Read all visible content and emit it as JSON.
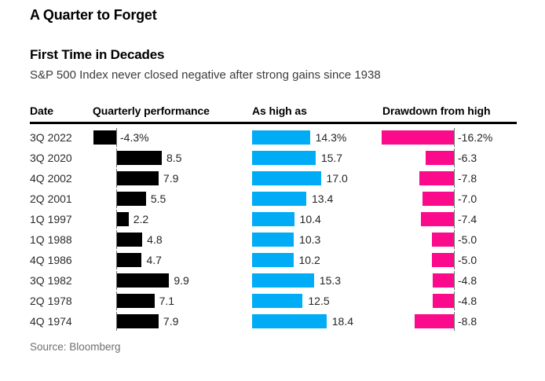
{
  "page": {
    "title": "A Quarter to Forget"
  },
  "chart": {
    "title": "First Time in Decades",
    "subtitle": "S&P 500 Index never closed negative after strong gains since 1938",
    "source": "Source: Bloomberg"
  },
  "colors": {
    "performance_bar": "#000000",
    "high_bar": "#00acf5",
    "drawdown_bar": "#fb0a8c",
    "baseline_tick": "#6e6e6e"
  },
  "chart_data": {
    "type": "bar",
    "orientation": "horizontal",
    "unit": "%",
    "title": "First Time in Decades",
    "subtitle": "S&P 500 Index never closed negative after strong gains since 1938",
    "columns": [
      "Date",
      "Quarterly performance",
      "As high as",
      "Drawdown from high"
    ],
    "rows": [
      {
        "date": "3Q 2022",
        "quarterly_performance": -4.3,
        "as_high_as": 14.3,
        "drawdown_from_high": -16.2,
        "labels": {
          "quarterly_performance": "-4.3%",
          "as_high_as": "14.3%",
          "drawdown_from_high": "-16.2%"
        }
      },
      {
        "date": "3Q 2020",
        "quarterly_performance": 8.5,
        "as_high_as": 15.7,
        "drawdown_from_high": -6.3,
        "labels": {
          "quarterly_performance": "8.5",
          "as_high_as": "15.7",
          "drawdown_from_high": "-6.3"
        }
      },
      {
        "date": "4Q 2002",
        "quarterly_performance": 7.9,
        "as_high_as": 17.0,
        "drawdown_from_high": -7.8,
        "labels": {
          "quarterly_performance": "7.9",
          "as_high_as": "17.0",
          "drawdown_from_high": "-7.8"
        }
      },
      {
        "date": "2Q 2001",
        "quarterly_performance": 5.5,
        "as_high_as": 13.4,
        "drawdown_from_high": -7.0,
        "labels": {
          "quarterly_performance": "5.5",
          "as_high_as": "13.4",
          "drawdown_from_high": "-7.0"
        }
      },
      {
        "date": "1Q 1997",
        "quarterly_performance": 2.2,
        "as_high_as": 10.4,
        "drawdown_from_high": -7.4,
        "labels": {
          "quarterly_performance": "2.2",
          "as_high_as": "10.4",
          "drawdown_from_high": "-7.4"
        }
      },
      {
        "date": "1Q 1988",
        "quarterly_performance": 4.8,
        "as_high_as": 10.3,
        "drawdown_from_high": -5.0,
        "labels": {
          "quarterly_performance": "4.8",
          "as_high_as": "10.3",
          "drawdown_from_high": "-5.0"
        }
      },
      {
        "date": "4Q 1986",
        "quarterly_performance": 4.7,
        "as_high_as": 10.2,
        "drawdown_from_high": -5.0,
        "labels": {
          "quarterly_performance": "4.7",
          "as_high_as": "10.2",
          "drawdown_from_high": "-5.0"
        }
      },
      {
        "date": "3Q 1982",
        "quarterly_performance": 9.9,
        "as_high_as": 15.3,
        "drawdown_from_high": -4.8,
        "labels": {
          "quarterly_performance": "9.9",
          "as_high_as": "15.3",
          "drawdown_from_high": "-4.8"
        }
      },
      {
        "date": "2Q 1978",
        "quarterly_performance": 7.1,
        "as_high_as": 12.5,
        "drawdown_from_high": -4.8,
        "labels": {
          "quarterly_performance": "7.1",
          "as_high_as": "12.5",
          "drawdown_from_high": "-4.8"
        }
      },
      {
        "date": "4Q 1974",
        "quarterly_performance": 7.9,
        "as_high_as": 18.4,
        "drawdown_from_high": -8.8,
        "labels": {
          "quarterly_performance": "7.9",
          "as_high_as": "18.4",
          "drawdown_from_high": "-8.8"
        }
      }
    ],
    "legend": "none",
    "grid": "off"
  }
}
